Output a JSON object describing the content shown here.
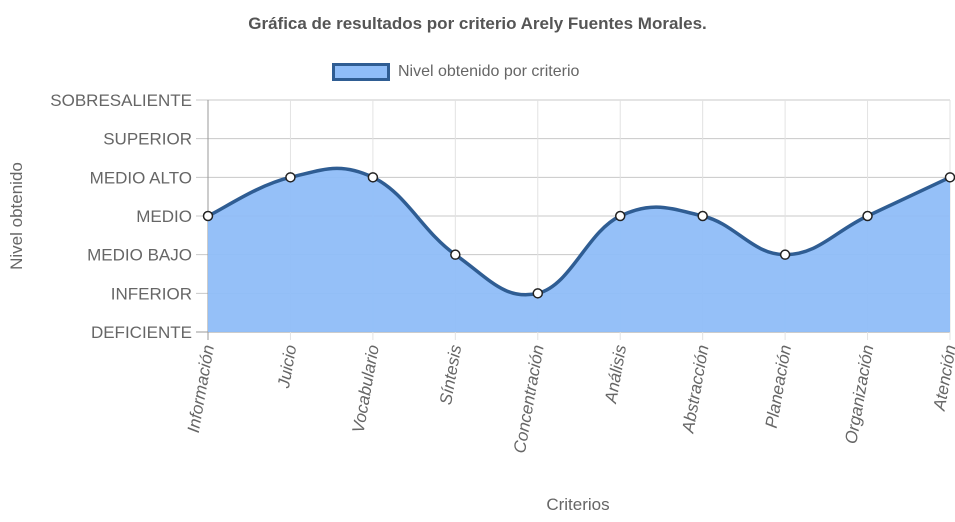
{
  "chart_data": {
    "type": "area",
    "title": "Gráfica de resultados por criterio Arely Fuentes Morales.",
    "xlabel": "Criterios",
    "ylabel": "Nivel obtenido",
    "levels": [
      "DEFICIENTE",
      "INFERIOR",
      "MEDIO BAJO",
      "MEDIO",
      "MEDIO ALTO",
      "SUPERIOR",
      "SOBRESALIENTE"
    ],
    "categories": [
      "Información",
      "Juicio",
      "Vocabulario",
      "Síntesis",
      "Concentración",
      "Análisis",
      "Abstracción",
      "Planeación",
      "Organización",
      "Atención"
    ],
    "series": [
      {
        "name": "Nivel obtenido por criterio",
        "values": [
          3,
          4,
          4,
          2,
          1,
          3,
          3,
          2,
          3,
          4
        ],
        "fill": "#8fbdf8",
        "stroke": "#2f5d93"
      }
    ],
    "ylim": [
      0,
      6
    ],
    "grid": true,
    "legend": "top"
  }
}
